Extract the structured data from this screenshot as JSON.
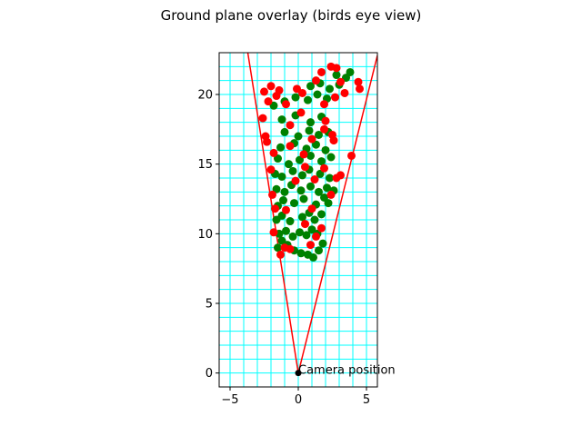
{
  "chart_data": {
    "type": "scatter",
    "title": "Ground plane overlay (birds eye view)",
    "xlabel": "",
    "ylabel": "",
    "xlim": [
      -5.8,
      5.8
    ],
    "ylim": [
      -1.0,
      23.0
    ],
    "xticks": [
      -5,
      0,
      5
    ],
    "yticks": [
      0,
      5,
      10,
      15,
      20
    ],
    "grid": true,
    "grid_color": "#00ffff",
    "grid_step": 1,
    "point_colors": {
      "ground": "#008000",
      "obstacle": "#ff0000"
    },
    "fov_line_color": "#ff0000",
    "fov_lines": [
      {
        "x": [
          0,
          -3.7
        ],
        "y": [
          0,
          23
        ]
      },
      {
        "x": [
          0,
          5.8
        ],
        "y": [
          0,
          22.8
        ]
      }
    ],
    "camera": {
      "x": 0,
      "y": 0,
      "label": "Camera position"
    },
    "series": [
      {
        "color": "green",
        "points": [
          [
            -1.5,
            9.0
          ],
          [
            -1.2,
            9.5
          ],
          [
            -0.8,
            9.2
          ],
          [
            -0.3,
            8.8
          ],
          [
            0.2,
            8.6
          ],
          [
            0.7,
            8.5
          ],
          [
            1.1,
            8.3
          ],
          [
            1.5,
            8.8
          ],
          [
            1.8,
            9.3
          ],
          [
            -1.4,
            10.0
          ],
          [
            -0.9,
            10.2
          ],
          [
            -0.4,
            9.8
          ],
          [
            0.1,
            10.1
          ],
          [
            0.6,
            9.9
          ],
          [
            1.0,
            10.3
          ],
          [
            1.4,
            10.0
          ],
          [
            -1.6,
            11.0
          ],
          [
            -1.2,
            11.3
          ],
          [
            -0.6,
            10.9
          ],
          [
            0.3,
            11.2
          ],
          [
            0.8,
            11.5
          ],
          [
            1.2,
            11.0
          ],
          [
            1.7,
            11.4
          ],
          [
            -1.5,
            12.0
          ],
          [
            -1.1,
            12.4
          ],
          [
            -0.3,
            12.2
          ],
          [
            0.4,
            12.5
          ],
          [
            1.3,
            12.1
          ],
          [
            1.9,
            12.6
          ],
          [
            2.2,
            12.2
          ],
          [
            -1.6,
            13.2
          ],
          [
            -1.0,
            13.0
          ],
          [
            -0.5,
            13.5
          ],
          [
            0.2,
            13.1
          ],
          [
            0.9,
            13.4
          ],
          [
            1.5,
            13.0
          ],
          [
            2.1,
            13.3
          ],
          [
            2.6,
            13.1
          ],
          [
            -1.7,
            14.3
          ],
          [
            -1.2,
            14.1
          ],
          [
            -0.4,
            14.5
          ],
          [
            0.3,
            14.2
          ],
          [
            0.8,
            14.6
          ],
          [
            1.6,
            14.3
          ],
          [
            2.3,
            14.0
          ],
          [
            -1.5,
            15.4
          ],
          [
            -0.7,
            15.0
          ],
          [
            0.1,
            15.3
          ],
          [
            0.9,
            15.6
          ],
          [
            1.7,
            15.2
          ],
          [
            2.4,
            15.5
          ],
          [
            -1.3,
            16.2
          ],
          [
            -0.3,
            16.5
          ],
          [
            0.6,
            16.1
          ],
          [
            1.3,
            16.4
          ],
          [
            2.0,
            16.0
          ],
          [
            -1.0,
            17.3
          ],
          [
            0.0,
            17.0
          ],
          [
            0.8,
            17.4
          ],
          [
            1.5,
            17.1
          ],
          [
            2.2,
            17.3
          ],
          [
            -1.2,
            18.2
          ],
          [
            -0.2,
            18.5
          ],
          [
            0.9,
            18.0
          ],
          [
            1.7,
            18.4
          ],
          [
            -1.8,
            19.2
          ],
          [
            -1.0,
            19.5
          ],
          [
            -0.2,
            19.8
          ],
          [
            0.7,
            19.6
          ],
          [
            1.4,
            20.0
          ],
          [
            2.1,
            19.7
          ],
          [
            0.9,
            20.6
          ],
          [
            1.6,
            20.8
          ],
          [
            2.3,
            20.4
          ],
          [
            3.0,
            20.7
          ],
          [
            3.5,
            21.2
          ],
          [
            3.8,
            21.6
          ],
          [
            2.8,
            21.4
          ]
        ]
      },
      {
        "color": "red",
        "points": [
          [
            -1.3,
            8.5
          ],
          [
            -1.0,
            9.0
          ],
          [
            -0.6,
            8.9
          ],
          [
            0.9,
            9.2
          ],
          [
            1.3,
            9.8
          ],
          [
            -1.8,
            10.1
          ],
          [
            -1.7,
            11.8
          ],
          [
            0.5,
            10.7
          ],
          [
            1.7,
            10.4
          ],
          [
            -0.9,
            11.7
          ],
          [
            1.0,
            11.8
          ],
          [
            -1.9,
            12.8
          ],
          [
            2.4,
            12.8
          ],
          [
            -0.2,
            13.8
          ],
          [
            1.2,
            13.9
          ],
          [
            2.8,
            14.0
          ],
          [
            -2.0,
            14.6
          ],
          [
            0.5,
            14.8
          ],
          [
            1.9,
            14.7
          ],
          [
            -1.8,
            15.8
          ],
          [
            0.4,
            15.7
          ],
          [
            3.1,
            14.2
          ],
          [
            3.9,
            15.6
          ],
          [
            -2.3,
            16.6
          ],
          [
            -0.6,
            16.3
          ],
          [
            1.0,
            16.8
          ],
          [
            2.6,
            16.7
          ],
          [
            -2.4,
            17.0
          ],
          [
            1.9,
            17.5
          ],
          [
            2.5,
            17.1
          ],
          [
            -2.6,
            18.3
          ],
          [
            -0.6,
            17.8
          ],
          [
            0.2,
            18.7
          ],
          [
            2.0,
            18.1
          ],
          [
            -2.2,
            19.5
          ],
          [
            -1.6,
            19.9
          ],
          [
            -0.9,
            19.3
          ],
          [
            0.3,
            20.1
          ],
          [
            1.9,
            19.3
          ],
          [
            2.7,
            19.8
          ],
          [
            -2.5,
            20.2
          ],
          [
            -2.0,
            20.6
          ],
          [
            -1.4,
            20.3
          ],
          [
            -0.1,
            20.4
          ],
          [
            1.3,
            21.0
          ],
          [
            1.7,
            21.6
          ],
          [
            2.4,
            22.0
          ],
          [
            2.8,
            21.9
          ],
          [
            3.1,
            20.9
          ],
          [
            3.4,
            20.1
          ],
          [
            4.4,
            20.9
          ],
          [
            4.5,
            20.4
          ]
        ]
      }
    ]
  }
}
